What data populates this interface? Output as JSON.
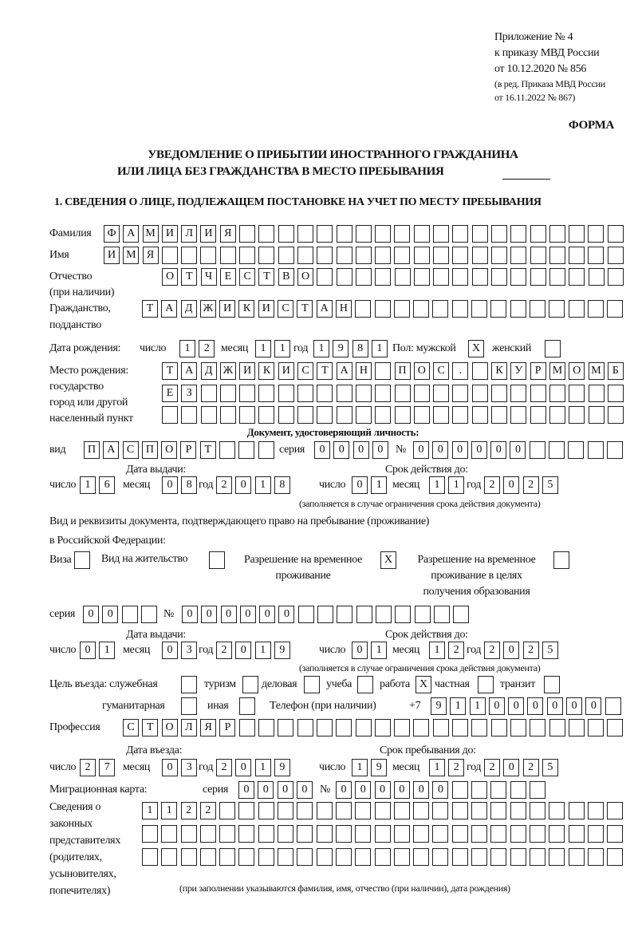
{
  "header": {
    "appendix": [
      "Приложение № 4",
      "к приказу МВД России",
      "от 10.12.2020 № 856"
    ],
    "revision": [
      "(в ред. Приказа МВД России",
      "от 16.11.2022 № 867)"
    ],
    "form_label": "ФОРМА",
    "title_line1": "УВЕДОМЛЕНИЕ О ПРИБЫТИИ ИНОСТРАННОГО ГРАЖДАНИНА",
    "title_line2": "ИЛИ ЛИЦА БЕЗ ГРАЖДАНСТВА В МЕСТО ПРЕБЫВАНИЯ",
    "section1_title": "1. СВЕДЕНИЯ О ЛИЦЕ, ПОДЛЕЖАЩЕМ ПОСТАНОВКЕ НА УЧЕТ ПО МЕСТУ ПРЕБЫВАНИЯ"
  },
  "person": {
    "surname_label": "Фамилия",
    "surname": "ФАМИЛИЯ",
    "name_label": "Имя",
    "name": "ИМЯ",
    "patronymic_label": [
      "Отчество",
      "(при наличии)"
    ],
    "patronymic": "ОТЧЕСТВО",
    "citizenship_label": [
      "Гражданство,",
      "подданство"
    ],
    "citizenship": "ТАДЖИКИСТАН",
    "birth_label": "Дата рождения:",
    "day_label": "число",
    "month_label": "месяц",
    "year_label": "год",
    "birth_day": "12",
    "birth_month": "11",
    "birth_year": "1981",
    "sex_label": "Пол: мужской",
    "male": "X",
    "female_label": "женский",
    "female": "",
    "birthplace_label": [
      "Место рождения:",
      "государство",
      "город или другой",
      "населенный пункт"
    ],
    "birthplace": [
      "ТАДЖИКИСТАН ПОС. КУРМОМБ",
      "ЕЗ",
      ""
    ]
  },
  "id_document": {
    "heading": "Документ, удостоверяющий личность:",
    "type_label": "вид",
    "type": "ПАСПОРТ",
    "series_label": "серия",
    "series": "0000",
    "number_label": "№",
    "number": "000000",
    "issue_label": "Дата выдачи:",
    "valid_label": "Срок действия до:",
    "issue": {
      "day": "16",
      "month": "08",
      "year": "2018"
    },
    "valid": {
      "day": "01",
      "month": "11",
      "year": "2025"
    },
    "note": "(заполняется в случае ограничения срока действия документа)"
  },
  "stay_document": {
    "heading1": "Вид и реквизиты документа, подтверждающего право на пребывание (проживание)",
    "heading2": "в Российской Федерации:",
    "visa_label": "Виза",
    "visa": "",
    "residence_label": "Вид на жительство",
    "residence": "",
    "temp_label": [
      "Разрешение на временное",
      "проживание"
    ],
    "temp": "X",
    "edu_label": [
      "Разрешение на временное",
      "проживание в целях",
      "получения образования"
    ],
    "edu": "",
    "series_label": "серия",
    "series": "00",
    "number_label": "№",
    "number": "000000",
    "issue_label": "Дата выдачи:",
    "valid_label": "Срок действия до:",
    "issue": {
      "day": "01",
      "month": "03",
      "year": "2019"
    },
    "valid": {
      "day": "01",
      "month": "12",
      "year": "2025"
    },
    "note": "(заполняется в случае ограничения срока действия документа)"
  },
  "purpose": {
    "label": "Цель въезда: служебная",
    "official": "",
    "tourism_label": "туризм",
    "tourism": "",
    "business_label": "деловая",
    "business": "",
    "study_label": "учеба",
    "study": "",
    "work_label": "работа",
    "work": "X",
    "private_label": "частная",
    "private": "",
    "transit_label": "транзит",
    "transit": "",
    "humanitarian_label": "гуманитарная",
    "humanitarian": "",
    "other_label": "иная",
    "other": ""
  },
  "phone": {
    "label": "Телефон (при наличии)",
    "prefix": "+7",
    "value": "911000000"
  },
  "profession": {
    "label": "Профессия",
    "value": "СТОЛЯР"
  },
  "entry": {
    "entry_label": "Дата въезда:",
    "until_label": "Срок пребывания до:",
    "entry": {
      "day": "27",
      "month": "03",
      "year": "2019"
    },
    "until": {
      "day": "19",
      "month": "12",
      "year": "2025"
    }
  },
  "migration_card": {
    "label": "Миграционная карта:",
    "series_label": "серия",
    "series": "0000",
    "number_label": "№",
    "number": "000000"
  },
  "representatives": {
    "label": [
      "Сведения о",
      "законных",
      "представителях",
      "(родителях,",
      "усыновителях,",
      "попечителях)"
    ],
    "rows": [
      "1122",
      "",
      ""
    ],
    "note": "(при заполнении указываются фамилия, имя, отчество (при наличии), дата рождения)"
  }
}
